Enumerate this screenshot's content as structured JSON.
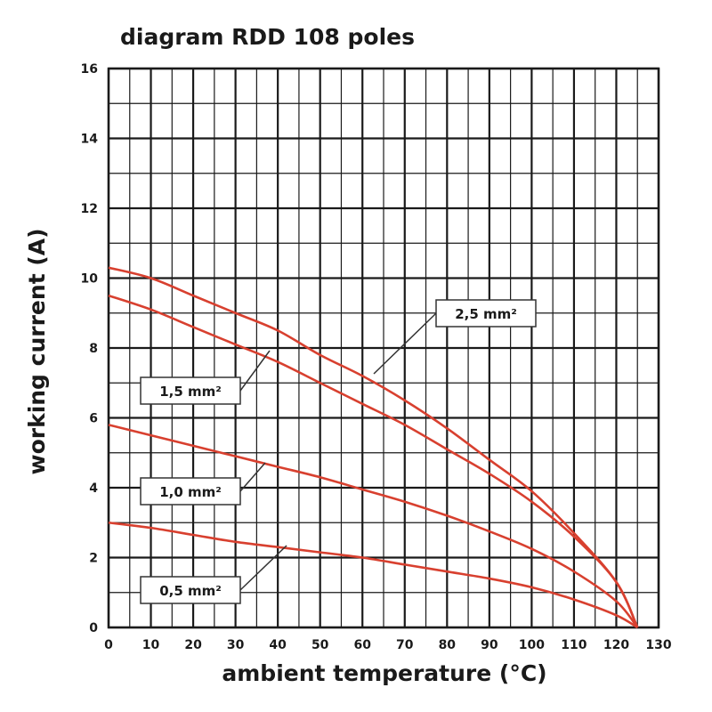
{
  "chart_data": {
    "type": "line",
    "title": "diagram RDD 108 poles",
    "xlabel": "ambient temperature (°C)",
    "ylabel": "working current (A)",
    "xlim": [
      0,
      130
    ],
    "ylim": [
      0,
      16
    ],
    "x_ticks": [
      "0",
      "10",
      "20",
      "30",
      "40",
      "50",
      "60",
      "70",
      "80",
      "90",
      "100",
      "110",
      "120",
      "130"
    ],
    "y_ticks": [
      "0",
      "2",
      "4",
      "6",
      "8",
      "10",
      "12",
      "14",
      "16"
    ],
    "x_minor_step": 5,
    "y_minor_step": 1,
    "grid": true,
    "line_color": "#d8402f",
    "series": [
      {
        "name": "2,5 mm²",
        "x": [
          0,
          10,
          20,
          30,
          40,
          50,
          60,
          70,
          80,
          90,
          100,
          110,
          120,
          125
        ],
        "y": [
          10.3,
          10.0,
          9.5,
          9.0,
          8.5,
          7.8,
          7.2,
          6.5,
          5.7,
          4.8,
          3.9,
          2.7,
          1.3,
          0
        ]
      },
      {
        "name": "1,5 mm²",
        "x": [
          0,
          10,
          20,
          30,
          40,
          50,
          60,
          70,
          80,
          90,
          100,
          110,
          120,
          125
        ],
        "y": [
          9.5,
          9.1,
          8.6,
          8.1,
          7.6,
          7.0,
          6.4,
          5.8,
          5.1,
          4.4,
          3.6,
          2.6,
          1.3,
          0
        ]
      },
      {
        "name": "1,0 mm²",
        "x": [
          0,
          10,
          20,
          30,
          40,
          50,
          60,
          70,
          80,
          90,
          100,
          110,
          120,
          125
        ],
        "y": [
          5.8,
          5.5,
          5.2,
          4.9,
          4.6,
          4.3,
          3.95,
          3.6,
          3.2,
          2.75,
          2.25,
          1.6,
          0.75,
          0
        ]
      },
      {
        "name": "0,5 mm²",
        "x": [
          0,
          10,
          20,
          30,
          40,
          50,
          60,
          70,
          80,
          90,
          100,
          110,
          120,
          125
        ],
        "y": [
          3.0,
          2.85,
          2.65,
          2.45,
          2.3,
          2.15,
          2.0,
          1.8,
          1.6,
          1.4,
          1.15,
          0.8,
          0.35,
          0
        ]
      }
    ],
    "callouts": [
      {
        "label": "2,5 mm²"
      },
      {
        "label": "1,5 mm²"
      },
      {
        "label": "1,0 mm²"
      },
      {
        "label": "0,5 mm²"
      }
    ]
  }
}
